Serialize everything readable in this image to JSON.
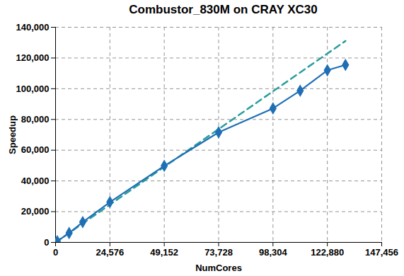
{
  "chart_data": {
    "type": "line",
    "title": "Combustor_830M on CRAY XC30",
    "x_label": "NumCores",
    "y_label": "Speedup",
    "series": [
      {
        "color": "#2a9d9d",
        "line_style": "dashed",
        "marker": "none",
        "x": [
          0,
          131072
        ],
        "values": [
          0,
          131072
        ]
      },
      {
        "color": "#1f6fb4",
        "line_style": "solid",
        "marker": "diamond",
        "x": [
          768,
          6144,
          12288,
          24576,
          49152,
          73728,
          98304,
          110592,
          122880,
          131072
        ],
        "values": [
          768,
          6100,
          13200,
          26200,
          49800,
          71600,
          87200,
          98700,
          112000,
          115500
        ]
      }
    ],
    "xlim": [
      0,
      147456
    ],
    "xticks": [
      0,
      {
        "value": 24576,
        "label": "24,576"
      },
      {
        "value": 49152,
        "label": "49,152"
      },
      {
        "value": 73728,
        "label": "73,728"
      },
      {
        "value": 98304,
        "label": "98,304"
      },
      {
        "value": 122880,
        "label": "122,880"
      },
      {
        "value": 147456,
        "label": "147,456"
      }
    ],
    "ylim": [
      0,
      140000
    ],
    "yticks": [
      0,
      {
        "value": 20000,
        "label": "20,000"
      },
      {
        "value": 40000,
        "label": "40,000"
      },
      {
        "value": 60000,
        "label": "60,000"
      },
      {
        "value": 80000,
        "label": "80,000"
      },
      {
        "value": 100000,
        "label": "100,000"
      },
      {
        "value": 120000,
        "label": "120,000"
      },
      {
        "value": 140000,
        "label": "140,000"
      }
    ],
    "grid": true
  }
}
